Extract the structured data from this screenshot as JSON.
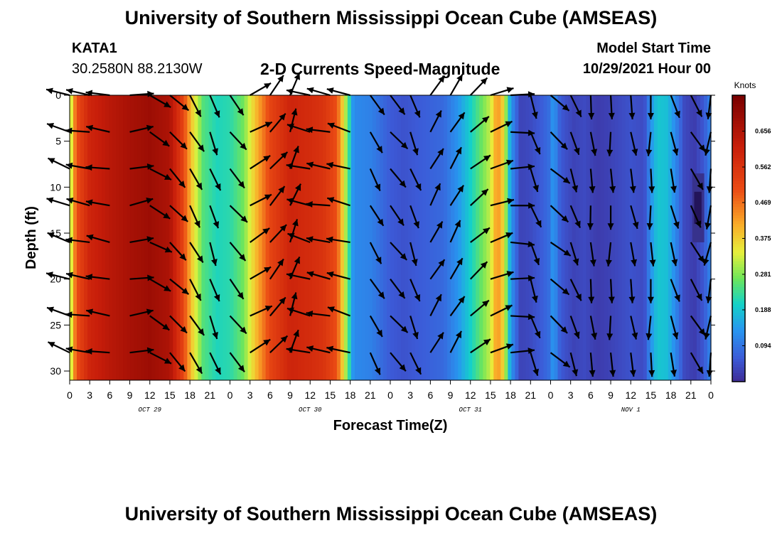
{
  "header": {
    "title": "University of Southern Mississippi Ocean Cube (AMSEAS)",
    "station": "KATA1",
    "coordinates": "30.2580N  88.2130W",
    "subtitle": "2-D Currents Speed-Magnitude",
    "model_start_label": "Model Start Time",
    "model_start_value": "10/29/2021 Hour 00"
  },
  "footer": {
    "title": "University of Southern Mississippi Ocean Cube (AMSEAS)"
  },
  "chart_data": {
    "type": "heatmap",
    "xlabel": "Forecast Time(Z)",
    "ylabel": "Depth (ft)",
    "x_range_hours": [
      0,
      96
    ],
    "ylim": [
      0,
      31
    ],
    "x_ticks": [
      "0",
      "3",
      "6",
      "9",
      "12",
      "15",
      "18",
      "21",
      "0",
      "3",
      "6",
      "9",
      "12",
      "15",
      "18",
      "21",
      "0",
      "3",
      "6",
      "9",
      "12",
      "15",
      "18",
      "21",
      "0",
      "3",
      "6",
      "9",
      "12",
      "15",
      "18",
      "21",
      "0"
    ],
    "y_ticks": [
      0,
      5,
      10,
      15,
      20,
      25,
      30
    ],
    "date_labels": [
      {
        "label": "OCT 29",
        "hour": 12
      },
      {
        "label": "OCT 30",
        "hour": 36
      },
      {
        "label": "OCT 31",
        "hour": 60
      },
      {
        "label": "NOV 1",
        "hour": 84
      }
    ],
    "colorbar": {
      "units": "Knots",
      "range": [
        0,
        0.75
      ],
      "ticks": [
        "0.656",
        "0.562",
        "0.469",
        "0.375",
        "0.281",
        "0.188",
        "0.094"
      ]
    },
    "speed_profile_knots": [
      [
        0,
        0.28
      ],
      [
        1,
        0.5
      ],
      [
        3,
        0.6
      ],
      [
        6,
        0.64
      ],
      [
        9,
        0.67
      ],
      [
        12,
        0.69
      ],
      [
        15,
        0.66
      ],
      [
        17,
        0.52
      ],
      [
        18.5,
        0.36
      ],
      [
        20,
        0.25
      ],
      [
        22,
        0.21
      ],
      [
        24,
        0.22
      ],
      [
        26,
        0.27
      ],
      [
        28,
        0.4
      ],
      [
        30,
        0.52
      ],
      [
        33,
        0.6
      ],
      [
        36,
        0.58
      ],
      [
        38,
        0.56
      ],
      [
        40,
        0.5
      ],
      [
        41.5,
        0.28
      ],
      [
        42.5,
        0.12
      ],
      [
        45,
        0.11
      ],
      [
        48,
        0.06
      ],
      [
        50,
        0.05
      ],
      [
        52,
        0.06
      ],
      [
        54,
        0.07
      ],
      [
        56,
        0.08
      ],
      [
        58,
        0.13
      ],
      [
        60,
        0.2
      ],
      [
        61.5,
        0.26
      ],
      [
        63,
        0.32
      ],
      [
        64,
        0.44
      ],
      [
        65,
        0.36
      ],
      [
        66,
        0.14
      ],
      [
        67.5,
        0.03
      ],
      [
        69,
        0.04
      ],
      [
        70.5,
        0.06
      ],
      [
        72,
        0.09
      ],
      [
        72.5,
        0.16
      ],
      [
        73,
        0.08
      ],
      [
        74,
        0.05
      ],
      [
        75.5,
        0.03
      ],
      [
        77,
        0.04
      ],
      [
        79,
        0.02
      ],
      [
        81,
        0.03
      ],
      [
        84,
        0.05
      ],
      [
        86,
        0.04
      ],
      [
        87,
        0.13
      ],
      [
        88,
        0.19
      ],
      [
        89.5,
        0.18
      ],
      [
        91,
        0.1
      ],
      [
        92,
        0.04
      ],
      [
        93.5,
        0.02
      ],
      [
        95,
        0.06
      ],
      [
        96,
        0.12
      ]
    ],
    "arrow_grid": {
      "hour_step": 3,
      "depths_ft": [
        0,
        4,
        8,
        12,
        16,
        20,
        24,
        28
      ],
      "direction_deg_by_hour": [
        -70,
        -80,
        -80,
        80,
        120,
        135,
        150,
        160,
        140,
        60,
        40,
        20,
        -75,
        -80,
        -75,
        150,
        140,
        160,
        30,
        30,
        50,
        70,
        90,
        160,
        130,
        160,
        175,
        180,
        170,
        180,
        165,
        150,
        190
      ]
    }
  }
}
